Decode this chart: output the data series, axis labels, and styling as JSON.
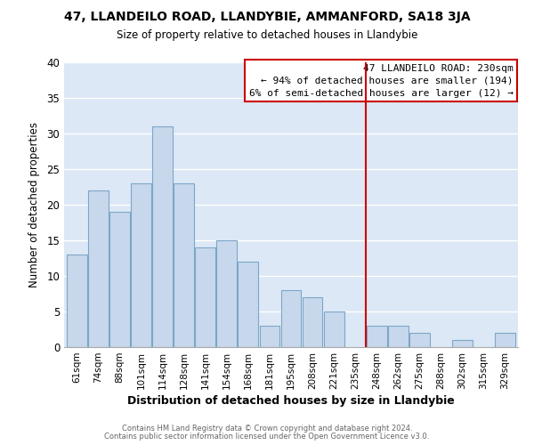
{
  "title": "47, LLANDEILO ROAD, LLANDYBIE, AMMANFORD, SA18 3JA",
  "subtitle": "Size of property relative to detached houses in Llandybie",
  "xlabel": "Distribution of detached houses by size in Llandybie",
  "ylabel": "Number of detached properties",
  "bar_labels": [
    "61sqm",
    "74sqm",
    "88sqm",
    "101sqm",
    "114sqm",
    "128sqm",
    "141sqm",
    "154sqm",
    "168sqm",
    "181sqm",
    "195sqm",
    "208sqm",
    "221sqm",
    "235sqm",
    "248sqm",
    "262sqm",
    "275sqm",
    "288sqm",
    "302sqm",
    "315sqm",
    "329sqm"
  ],
  "bar_values": [
    13,
    22,
    19,
    23,
    31,
    23,
    14,
    15,
    12,
    3,
    8,
    7,
    5,
    0,
    3,
    3,
    2,
    0,
    1,
    0,
    2
  ],
  "bar_color": "#c8d8ec",
  "bar_edge_color": "#7ba7c8",
  "ylim": [
    0,
    40
  ],
  "vline_x": 13.5,
  "vline_color": "#cc0000",
  "annotation_title": "47 LLANDEILO ROAD: 230sqm",
  "annotation_line1": "← 94% of detached houses are smaller (194)",
  "annotation_line2": "6% of semi-detached houses are larger (12) →",
  "footer1": "Contains HM Land Registry data © Crown copyright and database right 2024.",
  "footer2": "Contains public sector information licensed under the Open Government Licence v3.0.",
  "fig_background": "#ffffff",
  "plot_background": "#dce8f5",
  "grid_color": "#ffffff"
}
